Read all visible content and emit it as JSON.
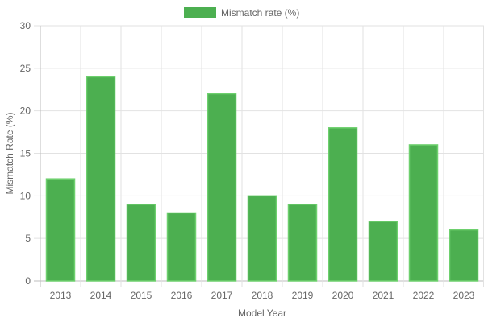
{
  "chart_data": {
    "type": "bar",
    "categories": [
      "2013",
      "2014",
      "2015",
      "2016",
      "2017",
      "2018",
      "2019",
      "2020",
      "2021",
      "2022",
      "2023"
    ],
    "series": [
      {
        "name": "Mismatch rate (%)",
        "values": [
          12,
          24,
          9,
          8,
          22,
          10,
          9,
          18,
          7,
          16,
          6
        ],
        "color": "#4CAF50",
        "border_color": "#6ED06E"
      }
    ],
    "xlabel": "Model Year",
    "ylabel": "Mismatch Rate (%)",
    "ylim": [
      0,
      30
    ],
    "yticks": [
      0,
      5,
      10,
      15,
      20,
      25,
      30
    ],
    "grid": true,
    "legend_position": "top-center"
  }
}
